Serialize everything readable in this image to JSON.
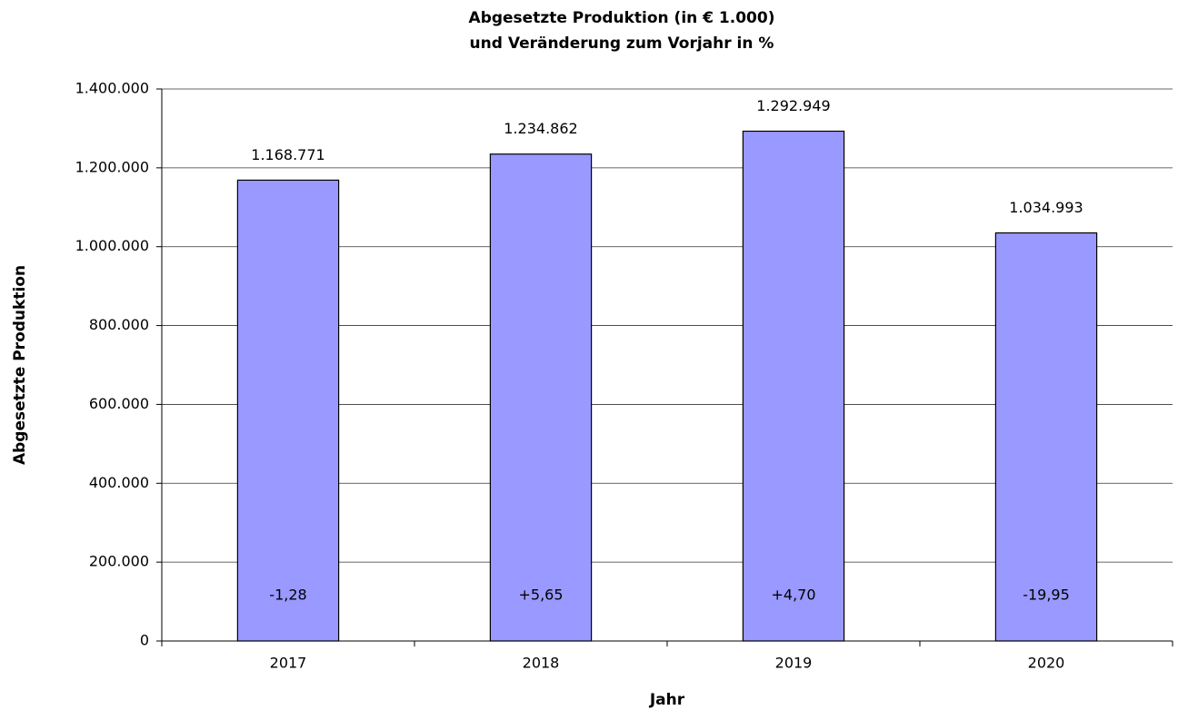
{
  "chart_data": {
    "type": "bar",
    "title": [
      "Abgesetzte Produktion (in € 1.000)",
      "und Veränderung zum Vorjahr in %"
    ],
    "x_label": "Jahr",
    "y_label": "Abgesetzte Produktion",
    "categories": [
      "2017",
      "2018",
      "2019",
      "2020"
    ],
    "values": [
      1168771,
      1234862,
      1292949,
      1034993
    ],
    "value_labels": [
      "1.168.771",
      "1.234.862",
      "1.292.949",
      "1.034.993"
    ],
    "annotations": [
      "-1,28",
      "+5,65",
      "+4,70",
      "-19,95"
    ],
    "color": "#9999ff",
    "ylim": [
      0,
      1400000
    ],
    "yticks": [
      0,
      {
        "value": 200000,
        "label": "200.000"
      },
      {
        "value": 400000,
        "label": "400.000"
      },
      {
        "value": 600000,
        "label": "600.000"
      },
      {
        "value": 800000,
        "label": "800.000"
      },
      {
        "value": 1000000,
        "label": "1.000.000"
      },
      {
        "value": 1200000,
        "label": "1.200.000"
      },
      {
        "value": 1400000,
        "label": "1.400.000"
      }
    ],
    "grid": true
  }
}
